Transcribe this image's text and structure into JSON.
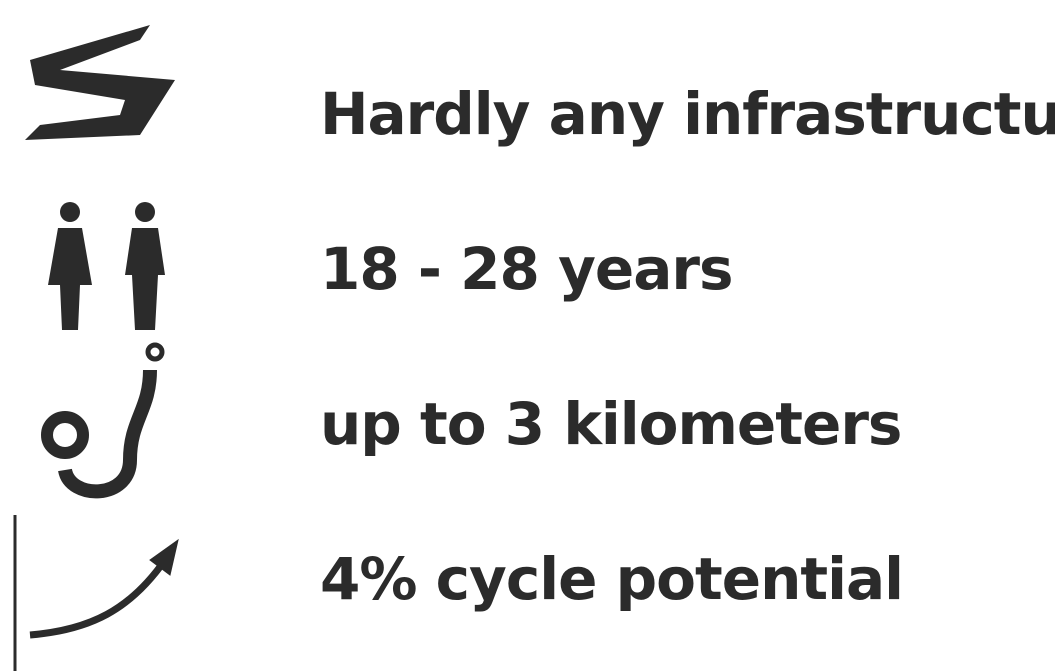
{
  "items": [
    {
      "label": "Hardly any infrastructure"
    },
    {
      "label": "18 - 28 years"
    },
    {
      "label": "up to 3 kilometers"
    },
    {
      "label": "4% cycle potential"
    }
  ]
}
